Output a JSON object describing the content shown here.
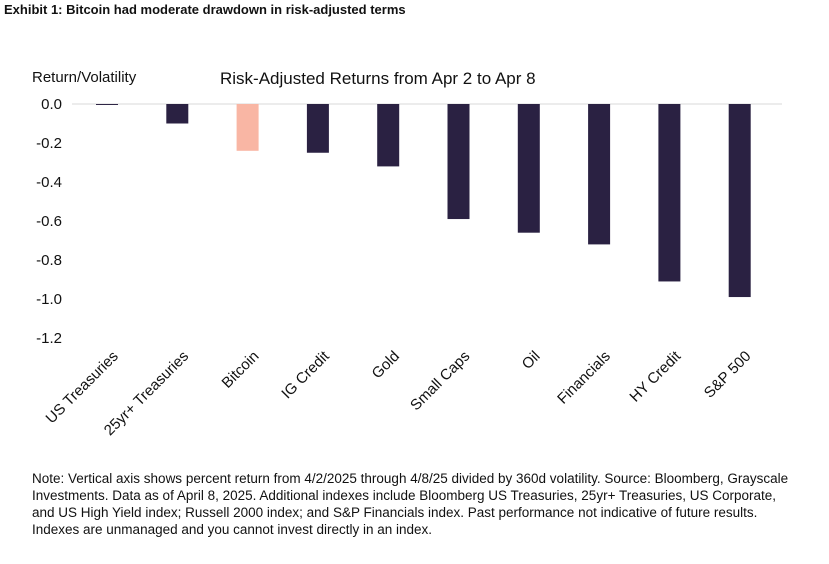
{
  "exhibit_title": "Exhibit 1: Bitcoin had moderate drawdown in risk-adjusted terms",
  "note": "Note: Vertical axis shows percent return from 4/2/2025 through 4/8/25 divided by 360d volatility. Source: Bloomberg, Grayscale Investments. Data as of April 8, 2025. Additional indexes include Bloomberg US Treasuries, 25yr+ Treasuries, US Corporate, and US High Yield index; Russell 2000 index; and S&P Financials index. Past performance not indicative of future results. Indexes are unmanaged and you cannot invest directly in an index.",
  "chart_data": {
    "type": "bar",
    "title": "Risk-Adjusted Returns from Apr 2 to Apr 8",
    "ylabel": "Return/Volatility",
    "xlabel": "",
    "ylim": [
      -1.2,
      0.0
    ],
    "yticks": [
      "0.0",
      "-0.2",
      "-0.4",
      "-0.6",
      "-0.8",
      "-1.0",
      "-1.2"
    ],
    "grid": false,
    "categories": [
      "US Treasuries",
      "25yr+ Treasuries",
      "Bitcoin",
      "IG Credit",
      "Gold",
      "Small Caps",
      "Oil",
      "Financials",
      "HY Credit",
      "S&P 500"
    ],
    "values": [
      -0.005,
      -0.1,
      -0.24,
      -0.25,
      -0.32,
      -0.59,
      -0.66,
      -0.72,
      -0.91,
      -0.99
    ],
    "colors": [
      "#2a2142",
      "#2a2142",
      "#f9b6a4",
      "#2a2142",
      "#2a2142",
      "#2a2142",
      "#2a2142",
      "#2a2142",
      "#2a2142",
      "#2a2142"
    ],
    "baseline_color": "#d9d9d9"
  }
}
